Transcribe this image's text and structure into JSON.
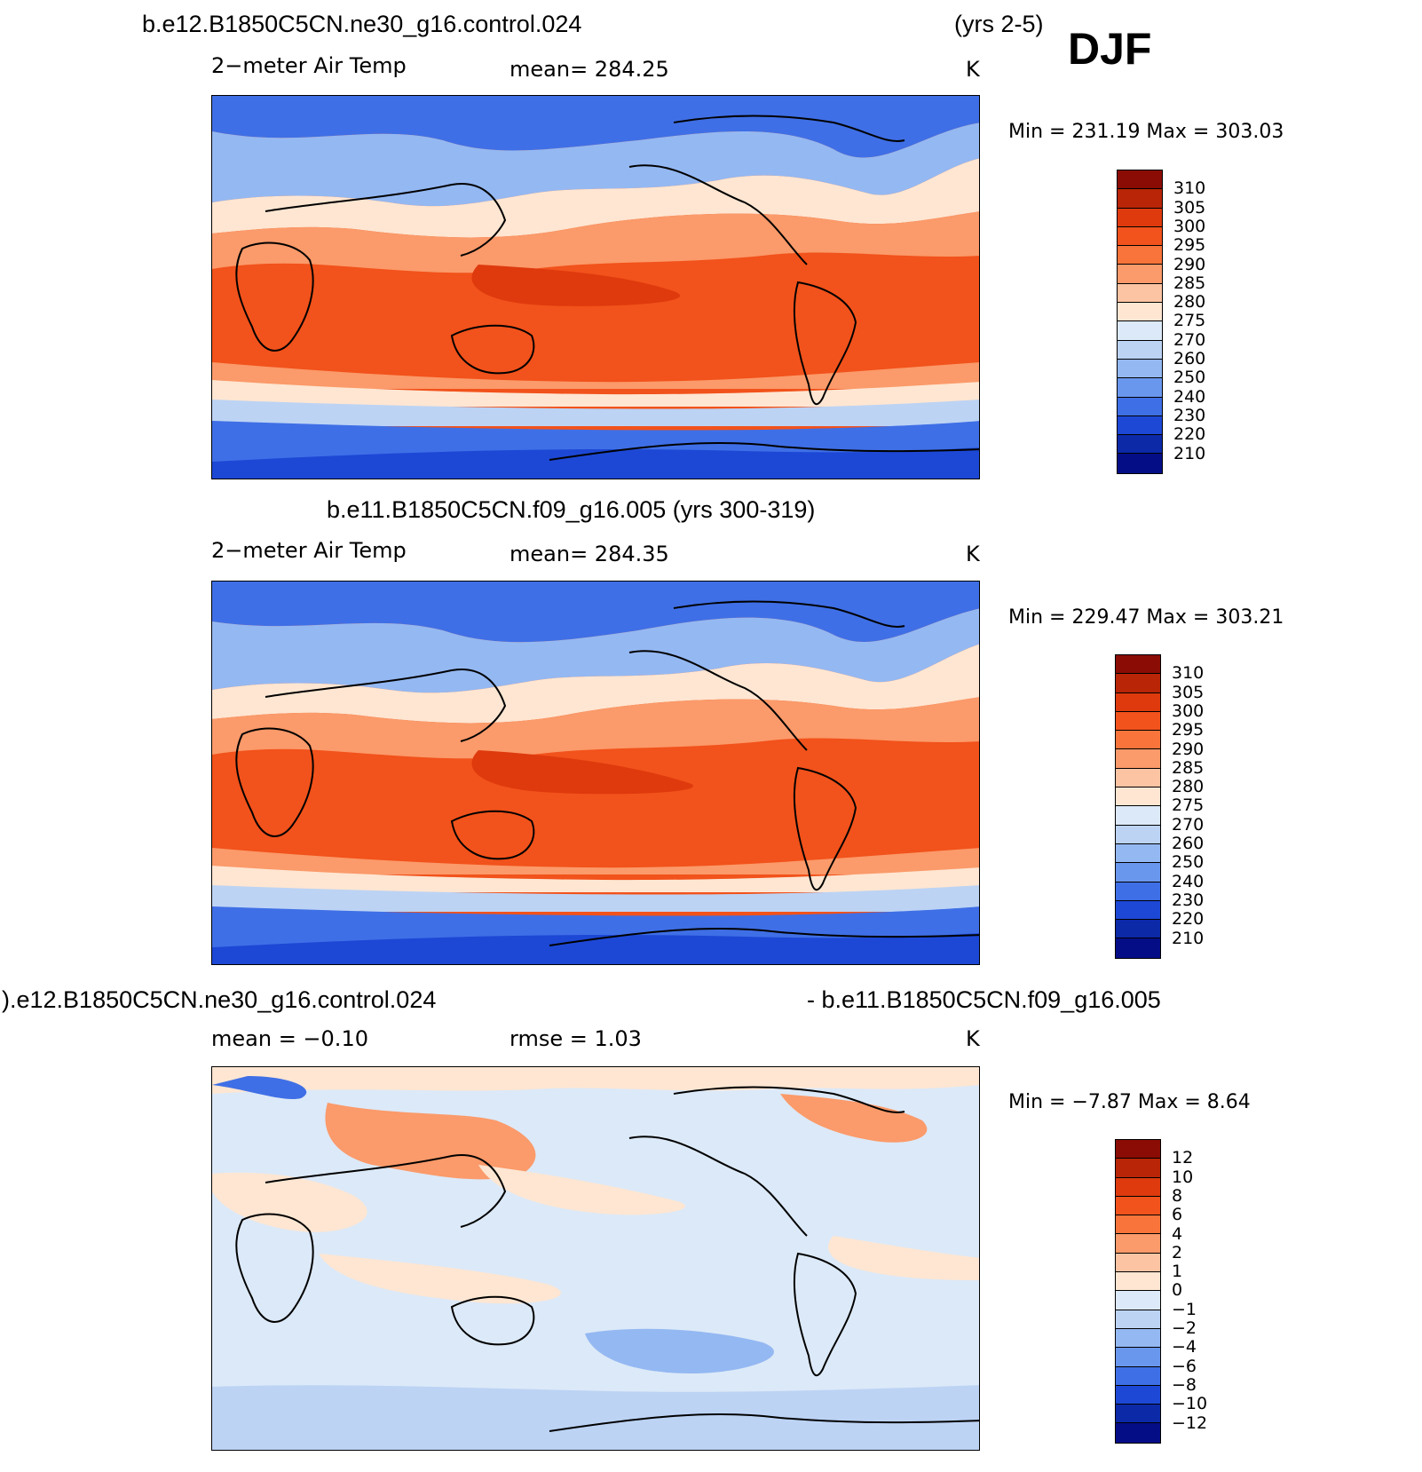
{
  "season": "DJF",
  "panel1": {
    "case": "b.e12.B1850C5CN.ne30_g16.control.024",
    "years": "(yrs 2-5)",
    "variable": "2−meter Air Temp",
    "mean": "mean=  284.25",
    "units": "K",
    "minmax": "Min  =  231.19  Max  =  303.03"
  },
  "panel2": {
    "title": "b.e11.B1850C5CN.f09_g16.005 (yrs 300-319)",
    "variable": "2−meter Air Temp",
    "mean": "mean=  284.35",
    "units": "K",
    "minmax": "Min  =  229.47  Max  =  303.21"
  },
  "panel3": {
    "left_title": ").e12.B1850C5CN.ne30_g16.control.024",
    "right_title": "- b.e11.B1850C5CN.f09_g16.005",
    "mean": "mean =   −0.10",
    "rmse": "rmse =     1.03",
    "units": "K",
    "minmax": "Min  =    −7.87  Max  =     8.64"
  },
  "temp_colorbar": {
    "labels": [
      "310",
      "305",
      "300",
      "295",
      "290",
      "285",
      "280",
      "275",
      "270",
      "260",
      "250",
      "240",
      "230",
      "220",
      "210"
    ],
    "colors": [
      "#8a0c05",
      "#b82507",
      "#de3a0d",
      "#f2521b",
      "#f9743a",
      "#fb9a6a",
      "#fcc4a3",
      "#fee6d2",
      "#dce9f8",
      "#bcd3f4",
      "#94b8f2",
      "#6a97ee",
      "#3f6fe6",
      "#1d48d6",
      "#0c29a8",
      "#050d86"
    ]
  },
  "diff_colorbar": {
    "labels": [
      "12",
      "10",
      "8",
      "6",
      "4",
      "2",
      "1",
      "0",
      "−1",
      "−2",
      "−4",
      "−6",
      "−8",
      "−10",
      "−12"
    ],
    "colors": [
      "#8a0c05",
      "#b82507",
      "#de3a0d",
      "#f2521b",
      "#f9743a",
      "#fb9a6a",
      "#fcc4a3",
      "#fee6d2",
      "#dce9f8",
      "#bcd3f4",
      "#94b8f2",
      "#6a97ee",
      "#3f6fe6",
      "#1d48d6",
      "#0c29a8",
      "#050d86"
    ]
  }
}
